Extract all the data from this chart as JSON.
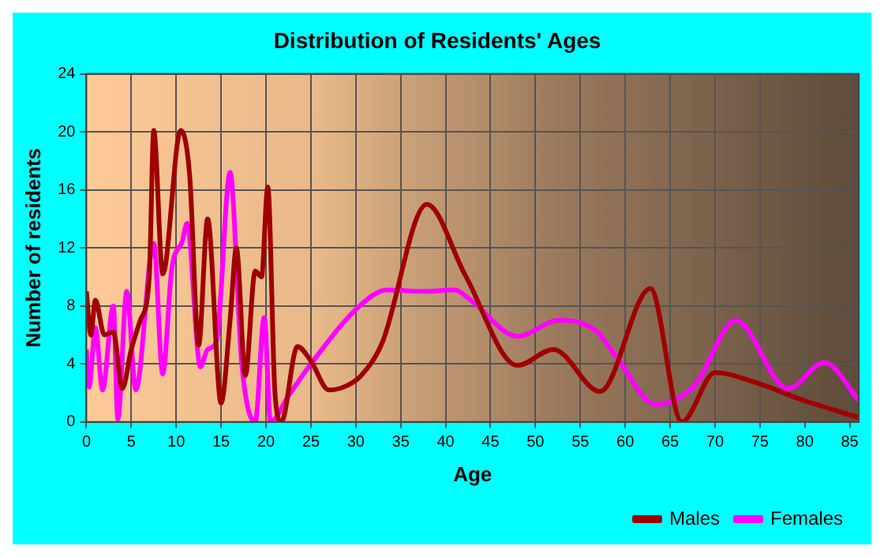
{
  "chart_data": {
    "type": "line",
    "title": "Distribution of Residents' Ages",
    "xlabel": "Age",
    "ylabel": "Number of residents",
    "xlim": [
      0,
      86
    ],
    "xticks": [
      0,
      5,
      10,
      15,
      20,
      25,
      30,
      35,
      40,
      45,
      50,
      55,
      60,
      65,
      70,
      75,
      80,
      85
    ],
    "ylim": [
      0,
      24
    ],
    "yticks": [
      0,
      4,
      8,
      12,
      16,
      20,
      24
    ],
    "grid": true,
    "legend": "bottom right",
    "marker": "none",
    "line_style": "solid",
    "series": [
      {
        "name": "Males",
        "color": "#a00000",
        "x": [
          0,
          0.5,
          1,
          2,
          3,
          4,
          5,
          6,
          7,
          7.5,
          8.5,
          10.5,
          11.5,
          12.5,
          13.5,
          15,
          16,
          16.7,
          17.7,
          18.8,
          19.5,
          20.2,
          21,
          21.7,
          23.5,
          25,
          27,
          29,
          30.6,
          32.9,
          37.9,
          42.2,
          48,
          52,
          57.2,
          62.8,
          66.3,
          70,
          74.6,
          79.8,
          86
        ],
        "values": [
          9,
          6,
          8.4,
          6,
          6.2,
          2.3,
          5,
          7,
          10,
          20.1,
          10.2,
          20.1,
          17,
          5.3,
          14,
          1.3,
          7,
          12,
          3.2,
          10.4,
          10,
          16.2,
          2,
          0,
          5.2,
          4.2,
          2.2,
          2.5,
          3.2,
          5.4,
          15,
          10.1,
          3.9,
          5,
          2.1,
          9.2,
          0,
          3.4,
          2.7,
          1.5,
          0.3
        ]
      },
      {
        "name": "Females",
        "color": "#ff00ff",
        "x": [
          0,
          0.3,
          1,
          1.8,
          3,
          3.5,
          4.5,
          5.5,
          7.5,
          8.5,
          9.5,
          10.7,
          11.2,
          12.7,
          13.5,
          14.5,
          16,
          17.3,
          18.8,
          19.8,
          20.5,
          22.5,
          25,
          30.6,
          33.5,
          37.6,
          41,
          42.8,
          48,
          52.6,
          56.7,
          59,
          63.4,
          67.7,
          72.3,
          78.1,
          82.2,
          86
        ],
        "values": [
          5,
          2.4,
          6.5,
          2.2,
          8,
          0.2,
          9,
          2.2,
          12.3,
          3.3,
          10.5,
          12.5,
          13.7,
          3.8,
          5,
          5.6,
          17.2,
          4,
          0,
          7.2,
          0,
          1.8,
          4,
          8.1,
          9.1,
          9,
          9.1,
          8.4,
          5.9,
          7,
          6.3,
          4.5,
          1.2,
          2.5,
          7,
          2.3,
          4.1,
          1.5
        ]
      }
    ]
  }
}
